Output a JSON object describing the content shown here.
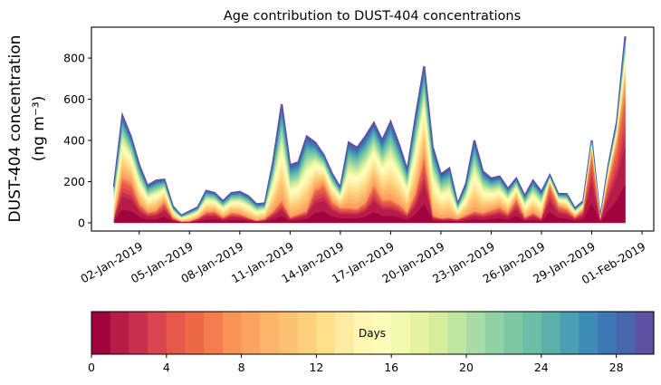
{
  "chart_data": {
    "type": "area",
    "stacked": true,
    "title": "Age contribution to DUST-404 concentrations",
    "ylabel_line1": "DUST-404 concentration",
    "ylabel_line2": "(ng m⁻³)",
    "xlabel": "",
    "ylim": [
      -40,
      950
    ],
    "yticks": [
      0,
      200,
      400,
      600,
      800
    ],
    "xlim_days": [
      -1.85,
      31.7
    ],
    "xticks": [
      {
        "day": 1,
        "label": "02-Jan-2019"
      },
      {
        "day": 4,
        "label": "05-Jan-2019"
      },
      {
        "day": 7,
        "label": "08-Jan-2019"
      },
      {
        "day": 10,
        "label": "11-Jan-2019"
      },
      {
        "day": 13,
        "label": "14-Jan-2019"
      },
      {
        "day": 16,
        "label": "17-Jan-2019"
      },
      {
        "day": 19,
        "label": "20-Jan-2019"
      },
      {
        "day": 22,
        "label": "23-Jan-2019"
      },
      {
        "day": 25,
        "label": "26-Jan-2019"
      },
      {
        "day": 28,
        "label": "29-Jan-2019"
      },
      {
        "day": 31,
        "label": "01-Feb-2019"
      }
    ],
    "x_start_day": -0.5,
    "x_step_days": 0.5,
    "total": [
      180,
      520,
      420,
      280,
      180,
      205,
      210,
      80,
      35,
      55,
      75,
      155,
      145,
      105,
      145,
      150,
      130,
      90,
      95,
      300,
      575,
      280,
      295,
      420,
      390,
      330,
      240,
      170,
      390,
      365,
      420,
      485,
      400,
      490,
      380,
      255,
      520,
      760,
      370,
      235,
      265,
      90,
      190,
      400,
      250,
      215,
      225,
      165,
      215,
      130,
      205,
      150,
      230,
      140,
      140,
      70,
      105,
      400,
      15,
      280,
      490,
      905
    ],
    "young_fraction": [
      0.12,
      0.45,
      0.5,
      0.35,
      0.3,
      0.3,
      0.5,
      0.3,
      0.1,
      0.1,
      0.3,
      0.35,
      0.4,
      0.25,
      0.35,
      0.3,
      0.2,
      0.1,
      0.2,
      0.2,
      0.2,
      0.1,
      0.15,
      0.15,
      0.45,
      0.6,
      0.45,
      0.45,
      0.2,
      0.2,
      0.25,
      0.4,
      0.3,
      0.25,
      0.25,
      0.2,
      0.3,
      0.45,
      0.1,
      0.1,
      0.1,
      0.2,
      0.2,
      0.15,
      0.2,
      0.3,
      0.35,
      0.3,
      0.55,
      0.2,
      0.25,
      0.15,
      0.8,
      0.6,
      0.5,
      0.4,
      0.6,
      0.85,
      0.4,
      0.75,
      0.8,
      0.75
    ],
    "legend": {
      "type": "colorbar",
      "placement": "bottom",
      "label": "Days",
      "range": [
        0,
        30
      ],
      "ticks": [
        0,
        4,
        8,
        12,
        16,
        20,
        24,
        28
      ],
      "bins": 30,
      "colormap": "Spectral",
      "colors": [
        "#a0043e",
        "#b51d48",
        "#c72f4c",
        "#d9444e",
        "#e65848",
        "#ed6a45",
        "#f47d4d",
        "#f79456",
        "#fba361",
        "#fcb46b",
        "#fdc174",
        "#fed07e",
        "#fee08b",
        "#feeba0",
        "#fff6b2",
        "#fbfdb8",
        "#f2fab0",
        "#e5f4a0",
        "#d6ee9b",
        "#c0e6a0",
        "#a8dca4",
        "#90d2a4",
        "#7ec9a4",
        "#6bbfa5",
        "#5bb1a8",
        "#4aa0b2",
        "#3d8cb8",
        "#3d79b5",
        "#4866ac",
        "#5e50a2"
      ]
    }
  }
}
